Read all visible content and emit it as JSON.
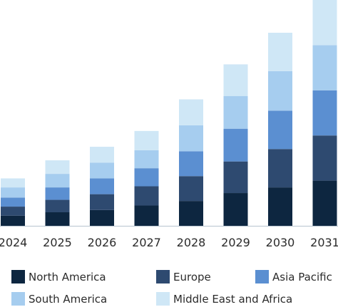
{
  "chart_data": {
    "type": "bar",
    "stacked": true,
    "title": "",
    "xlabel": "",
    "ylabel": "",
    "categories": [
      "2024",
      "2025",
      "2026",
      "2027",
      "2028",
      "2029",
      "2030",
      "2031"
    ],
    "ylim": [
      0,
      100
    ],
    "grid": false,
    "legend_position": "bottom",
    "series": [
      {
        "name": "North America",
        "color": "#0d2640",
        "values": [
          4.5,
          6.0,
          7.0,
          9.0,
          11.0,
          14.5,
          17.0,
          20.0
        ]
      },
      {
        "name": "Europe",
        "color": "#2e4a70",
        "values": [
          4.0,
          5.5,
          7.0,
          8.5,
          11.0,
          14.0,
          17.0,
          20.0
        ]
      },
      {
        "name": "Asia Pacific",
        "color": "#5b8fd1",
        "values": [
          4.0,
          5.5,
          7.0,
          8.0,
          11.0,
          14.5,
          17.0,
          20.0
        ]
      },
      {
        "name": "South America",
        "color": "#a6cdef",
        "values": [
          4.5,
          6.0,
          7.0,
          8.0,
          11.5,
          14.5,
          17.5,
          20.0
        ]
      },
      {
        "name": "Middle East and Africa",
        "color": "#cfe7f6",
        "values": [
          4.0,
          6.0,
          7.0,
          8.5,
          11.5,
          14.0,
          17.0,
          20.0
        ]
      }
    ]
  }
}
